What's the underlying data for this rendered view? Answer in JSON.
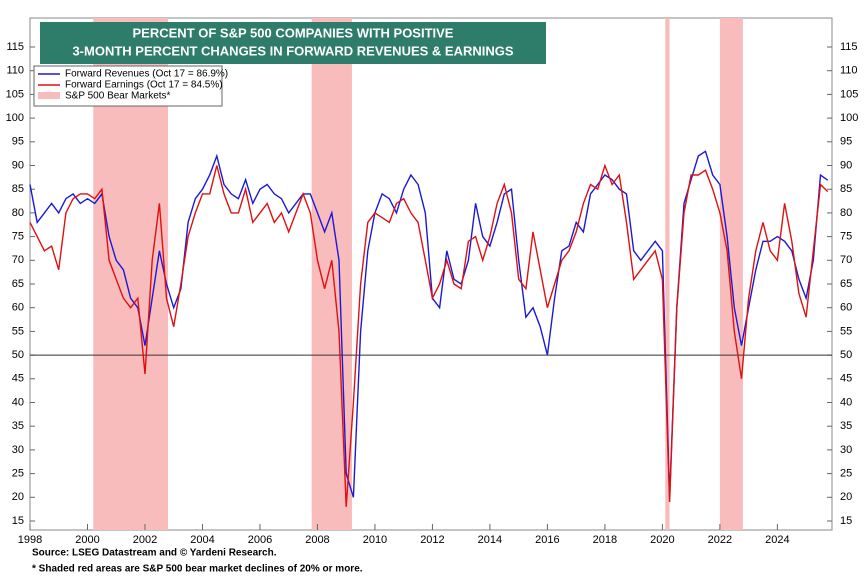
{
  "chart_data": {
    "type": "line",
    "title_lines": [
      "PERCENT OF S&P 500 COMPANIES WITH POSITIVE",
      "3-MONTH PERCENT CHANGES IN FORWARD REVENUES & EARNINGS"
    ],
    "x": [
      1998,
      1998.25,
      1998.5,
      1998.75,
      1999,
      1999.25,
      1999.5,
      1999.75,
      2000,
      2000.25,
      2000.5,
      2000.75,
      2001,
      2001.25,
      2001.5,
      2001.75,
      2002,
      2002.25,
      2002.5,
      2002.75,
      2003,
      2003.25,
      2003.5,
      2003.75,
      2004,
      2004.25,
      2004.5,
      2004.75,
      2005,
      2005.25,
      2005.5,
      2005.75,
      2006,
      2006.25,
      2006.5,
      2006.75,
      2007,
      2007.25,
      2007.5,
      2007.75,
      2008,
      2008.25,
      2008.5,
      2008.75,
      2009,
      2009.25,
      2009.5,
      2009.75,
      2010,
      2010.25,
      2010.5,
      2010.75,
      2011,
      2011.25,
      2011.5,
      2011.75,
      2012,
      2012.25,
      2012.5,
      2012.75,
      2013,
      2013.25,
      2013.5,
      2013.75,
      2014,
      2014.25,
      2014.5,
      2014.75,
      2015,
      2015.25,
      2015.5,
      2015.75,
      2016,
      2016.25,
      2016.5,
      2016.75,
      2017,
      2017.25,
      2017.5,
      2017.75,
      2018,
      2018.25,
      2018.5,
      2018.75,
      2019,
      2019.25,
      2019.5,
      2019.75,
      2020,
      2020.25,
      2020.5,
      2020.75,
      2021,
      2021.25,
      2021.5,
      2021.75,
      2022,
      2022.25,
      2022.5,
      2022.75,
      2023,
      2023.25,
      2023.5,
      2023.75,
      2024,
      2024.25,
      2024.5,
      2024.75,
      2025,
      2025.25,
      2025.5,
      2025.75
    ],
    "series": [
      {
        "name": "Forward Revenues (Oct 17 = 86.9%)",
        "color": "#1a1ad6",
        "values": [
          86,
          78,
          80,
          82,
          80,
          83,
          84,
          82,
          83,
          82,
          84,
          75,
          70,
          68,
          62,
          60,
          52,
          62,
          72,
          65,
          60,
          64,
          78,
          83,
          85,
          88,
          92,
          86,
          84,
          83,
          87,
          82,
          85,
          86,
          84,
          83,
          80,
          82,
          84,
          84,
          80,
          76,
          80,
          70,
          25,
          20,
          55,
          72,
          80,
          84,
          83,
          80,
          85,
          88,
          86,
          80,
          62,
          60,
          72,
          66,
          65,
          70,
          82,
          75,
          73,
          78,
          84,
          85,
          70,
          58,
          60,
          56,
          50,
          62,
          72,
          73,
          78,
          76,
          84,
          86,
          88,
          87,
          85,
          84,
          72,
          70,
          72,
          74,
          72,
          20,
          60,
          82,
          87,
          92,
          93,
          88,
          86,
          75,
          60,
          52,
          60,
          68,
          74,
          74,
          75,
          74,
          72,
          66,
          62,
          70,
          88,
          86.9
        ]
      },
      {
        "name": "Forward Earnings (Oct 17 = 84.5%)",
        "color": "#e01010",
        "values": [
          78,
          75,
          72,
          73,
          68,
          80,
          83,
          84,
          84,
          83,
          85,
          70,
          66,
          62,
          60,
          62,
          46,
          70,
          82,
          62,
          56,
          65,
          75,
          80,
          84,
          84,
          90,
          84,
          80,
          80,
          85,
          78,
          80,
          82,
          78,
          80,
          76,
          80,
          84,
          80,
          70,
          64,
          70,
          55,
          18,
          40,
          65,
          78,
          80,
          79,
          78,
          82,
          83,
          80,
          78,
          70,
          62,
          65,
          70,
          65,
          64,
          74,
          75,
          70,
          75,
          82,
          86,
          80,
          66,
          64,
          76,
          68,
          60,
          65,
          70,
          72,
          76,
          82,
          86,
          85,
          90,
          86,
          88,
          78,
          66,
          68,
          70,
          72,
          66,
          19,
          60,
          80,
          88,
          88,
          89,
          85,
          80,
          72,
          55,
          45,
          62,
          72,
          78,
          72,
          70,
          82,
          74,
          63,
          58,
          72,
          86,
          84.5
        ]
      }
    ],
    "bear_markets": {
      "name": "S&P 500 Bear Markets*",
      "color": "#f9bcbc",
      "ranges": [
        [
          2000.2,
          2002.8
        ],
        [
          2007.8,
          2009.2
        ],
        [
          2020.1,
          2020.25
        ],
        [
          2022.0,
          2022.8
        ]
      ]
    },
    "reference_line": 50,
    "xlim": [
      1998,
      2025.9
    ],
    "xticks": [
      1998,
      2000,
      2002,
      2004,
      2006,
      2008,
      2010,
      2012,
      2014,
      2016,
      2018,
      2020,
      2022,
      2024
    ],
    "ylim": [
      15,
      115
    ],
    "yticks": [
      15,
      20,
      25,
      30,
      35,
      40,
      45,
      50,
      55,
      60,
      65,
      70,
      75,
      80,
      85,
      90,
      95,
      100,
      105,
      110,
      115
    ],
    "source": "Source: LSEG Datastream and © Yardeni Research.",
    "note": "* Shaded red areas are S&P 500 bear market declines of 20% or more."
  }
}
